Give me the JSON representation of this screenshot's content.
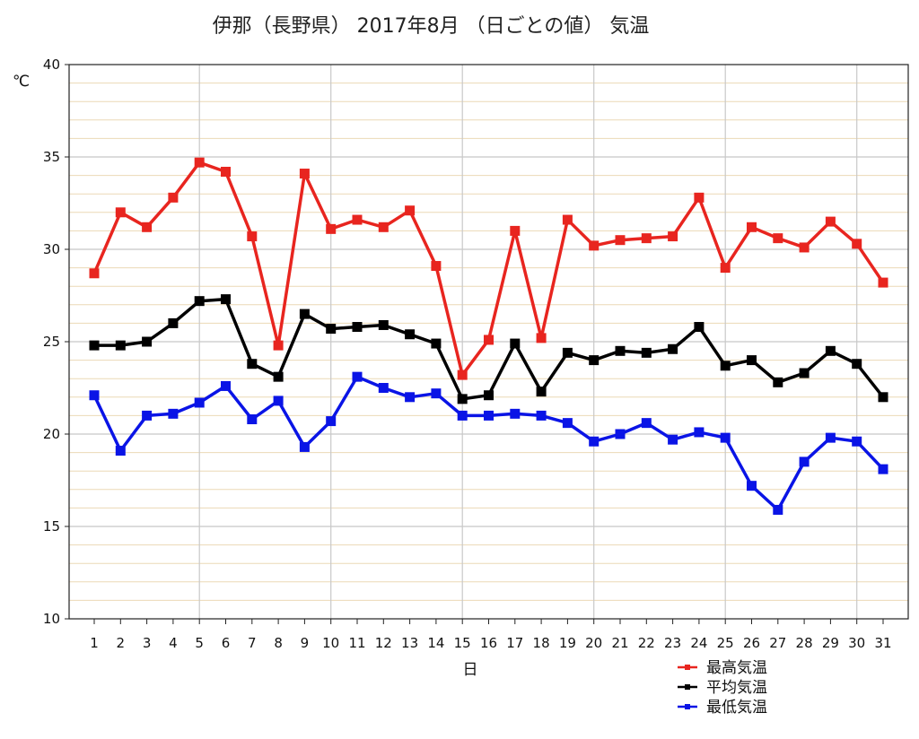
{
  "chart_data": {
    "type": "line",
    "title": "伊那（長野県） 2017年8月 （日ごとの値） 気温",
    "xlabel": "日",
    "ylabel": "℃",
    "ylim": [
      10,
      40
    ],
    "yticks": [
      10,
      15,
      20,
      25,
      30,
      35,
      40
    ],
    "categories": [
      "1",
      "2",
      "3",
      "4",
      "5",
      "6",
      "7",
      "8",
      "9",
      "10",
      "11",
      "12",
      "13",
      "14",
      "15",
      "16",
      "17",
      "18",
      "19",
      "20",
      "21",
      "22",
      "23",
      "24",
      "25",
      "26",
      "27",
      "28",
      "29",
      "30",
      "31"
    ],
    "grid": true,
    "legend_position": "bottom-right",
    "series": [
      {
        "name": "最高気温",
        "color": "#e8251f",
        "values": [
          28.7,
          32.0,
          31.2,
          32.8,
          34.7,
          34.2,
          30.7,
          24.8,
          34.1,
          31.1,
          31.6,
          31.2,
          32.1,
          29.1,
          23.2,
          25.1,
          31.0,
          25.2,
          31.6,
          30.2,
          30.5,
          30.6,
          30.7,
          32.8,
          29.0,
          31.2,
          30.6,
          30.1,
          31.5,
          30.3,
          28.2
        ]
      },
      {
        "name": "平均気温",
        "color": "#000000",
        "values": [
          24.8,
          24.8,
          25.0,
          26.0,
          27.2,
          27.3,
          23.8,
          23.1,
          26.5,
          25.7,
          25.8,
          25.9,
          25.4,
          24.9,
          21.9,
          22.1,
          24.9,
          22.3,
          24.4,
          24.0,
          24.5,
          24.4,
          24.6,
          25.8,
          23.7,
          24.0,
          22.8,
          23.3,
          24.5,
          23.8,
          22.0
        ]
      },
      {
        "name": "最低気温",
        "color": "#0a14e6",
        "values": [
          22.1,
          19.1,
          21.0,
          21.1,
          21.7,
          22.6,
          20.8,
          21.8,
          19.3,
          20.7,
          23.1,
          22.5,
          22.0,
          22.2,
          21.0,
          21.0,
          21.1,
          21.0,
          20.6,
          19.6,
          20.0,
          20.6,
          19.7,
          20.1,
          19.8,
          17.2,
          15.9,
          18.5,
          19.8,
          19.6,
          18.1
        ]
      }
    ]
  }
}
